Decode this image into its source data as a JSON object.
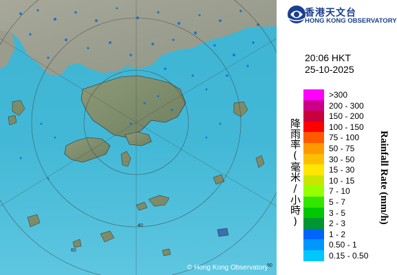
{
  "map": {
    "copyright": "© Hong Kong Observatory",
    "range_rings": [
      {
        "label": "40"
      },
      {
        "label": "60"
      },
      {
        "label": "80"
      }
    ]
  },
  "header": {
    "logo_zh": "香港天文台",
    "logo_en": "HONG KONG OBSERVATORY",
    "time": "20:06 HKT",
    "date": "25-10-2025"
  },
  "legend": {
    "title_zh": "降雨率(毫米/小時)",
    "title_en": "Rainfall Rate (mm/h)",
    "items": [
      {
        "label": ">300",
        "color": "#ff00ff"
      },
      {
        "label": "200 - 300",
        "color": "#cc0088"
      },
      {
        "label": "150 - 200",
        "color": "#c8003c"
      },
      {
        "label": "100 - 150",
        "color": "#ff0000"
      },
      {
        "label": "75 - 100",
        "color": "#ff5a00"
      },
      {
        "label": "50 - 75",
        "color": "#ff9900"
      },
      {
        "label": "30 - 50",
        "color": "#ffbe00"
      },
      {
        "label": "15 - 30",
        "color": "#ffe600"
      },
      {
        "label": "10 - 15",
        "color": "#c8e600"
      },
      {
        "label": "7 - 10",
        "color": "#96ff00"
      },
      {
        "label": "5 - 7",
        "color": "#32e600"
      },
      {
        "label": "3 - 5",
        "color": "#00c800"
      },
      {
        "label": "2 - 3",
        "color": "#009632"
      },
      {
        "label": "1 - 2",
        "color": "#0064ff"
      },
      {
        "label": "0.50 - 1",
        "color": "#0096ff"
      },
      {
        "label": "0.15 - 0.50",
        "color": "#00c8ff"
      }
    ]
  }
}
